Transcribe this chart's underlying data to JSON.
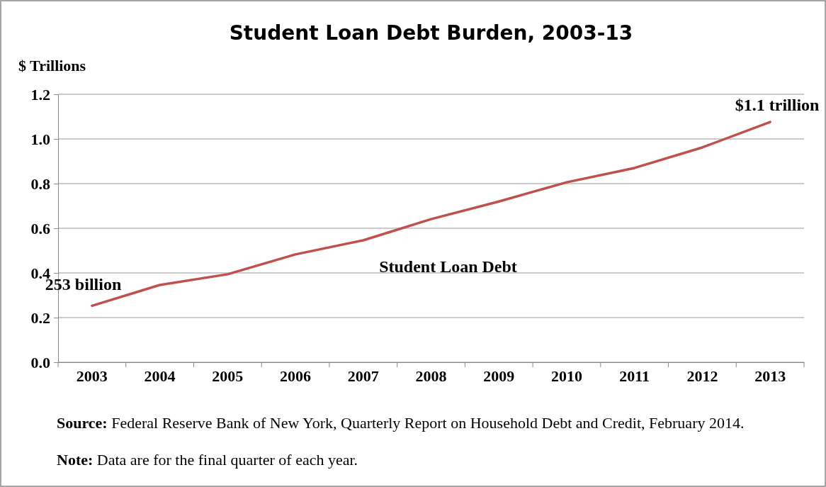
{
  "chart_data": {
    "type": "line",
    "title": "Student Loan Debt Burden, 2003-13",
    "ylabel": "$ Trillions",
    "categories": [
      "2003",
      "2004",
      "2005",
      "2006",
      "2007",
      "2008",
      "2009",
      "2010",
      "2011",
      "2012",
      "2013"
    ],
    "series": [
      {
        "name": "Student Loan Debt",
        "color": "#c0504d",
        "values": [
          0.253,
          0.346,
          0.394,
          0.483,
          0.546,
          0.641,
          0.72,
          0.806,
          0.87,
          0.962,
          1.076
        ]
      }
    ],
    "ylim": [
      0,
      1.2
    ],
    "yticks": [
      {
        "value": 0,
        "label": "0.0"
      },
      {
        "value": 0.2,
        "label": "0.2"
      },
      {
        "value": 0.4,
        "label": "0.4"
      },
      {
        "value": 0.6,
        "label": "0.6"
      },
      {
        "value": 0.8,
        "label": "0.8"
      },
      {
        "value": 1,
        "label": "1.0"
      },
      {
        "value": 1.2,
        "label": "1.2"
      }
    ],
    "grid": "y",
    "legend": false,
    "marker": "none",
    "line_style": "solid",
    "annotations": [
      {
        "text": "253 billion",
        "x": "2003",
        "y": 0.253
      },
      {
        "text": "$1.1 trillion",
        "x": "2013",
        "y": 1.076
      },
      "Source: Federal Reserve Bank of New York, Quarterly Report on Household Debt and Credit, February 2014.",
      "Note: Data are for the final quarter of each year."
    ]
  }
}
